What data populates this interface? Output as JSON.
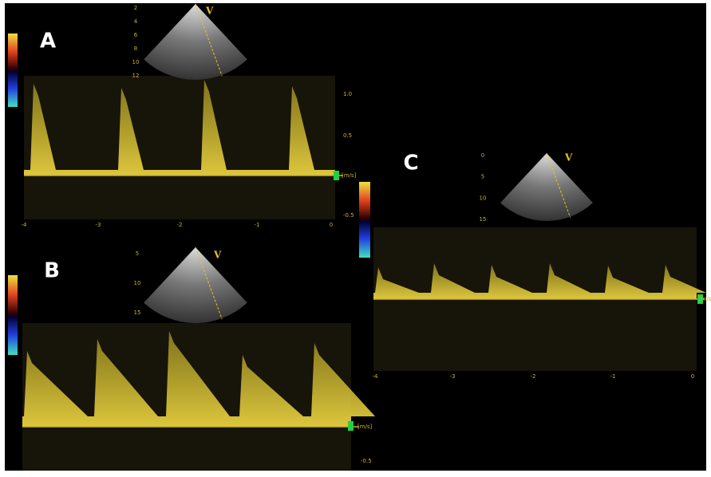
{
  "panels": [
    {
      "label": "A",
      "marker": "V",
      "unit": "[m/s]",
      "velocity_ticks": [
        "1.0",
        "0.5",
        "-0.5"
      ],
      "time_ticks": [
        "-4",
        "-3",
        "-2",
        "-1",
        "0"
      ],
      "depth_ticks": [
        "2",
        "4",
        "6",
        "8",
        "10",
        "12"
      ]
    },
    {
      "label": "B",
      "marker": "V",
      "unit": "[m/s]",
      "velocity_ticks": [
        "-0.5"
      ],
      "time_ticks": [],
      "depth_ticks": [
        "5",
        "10",
        "15"
      ]
    },
    {
      "label": "C",
      "marker": "V",
      "unit": "[m/s]",
      "velocity_ticks": [],
      "time_ticks": [
        "-4",
        "-3",
        "-2",
        "-1",
        "0"
      ],
      "depth_ticks": [
        "0",
        "5",
        "10",
        "15"
      ]
    }
  ]
}
